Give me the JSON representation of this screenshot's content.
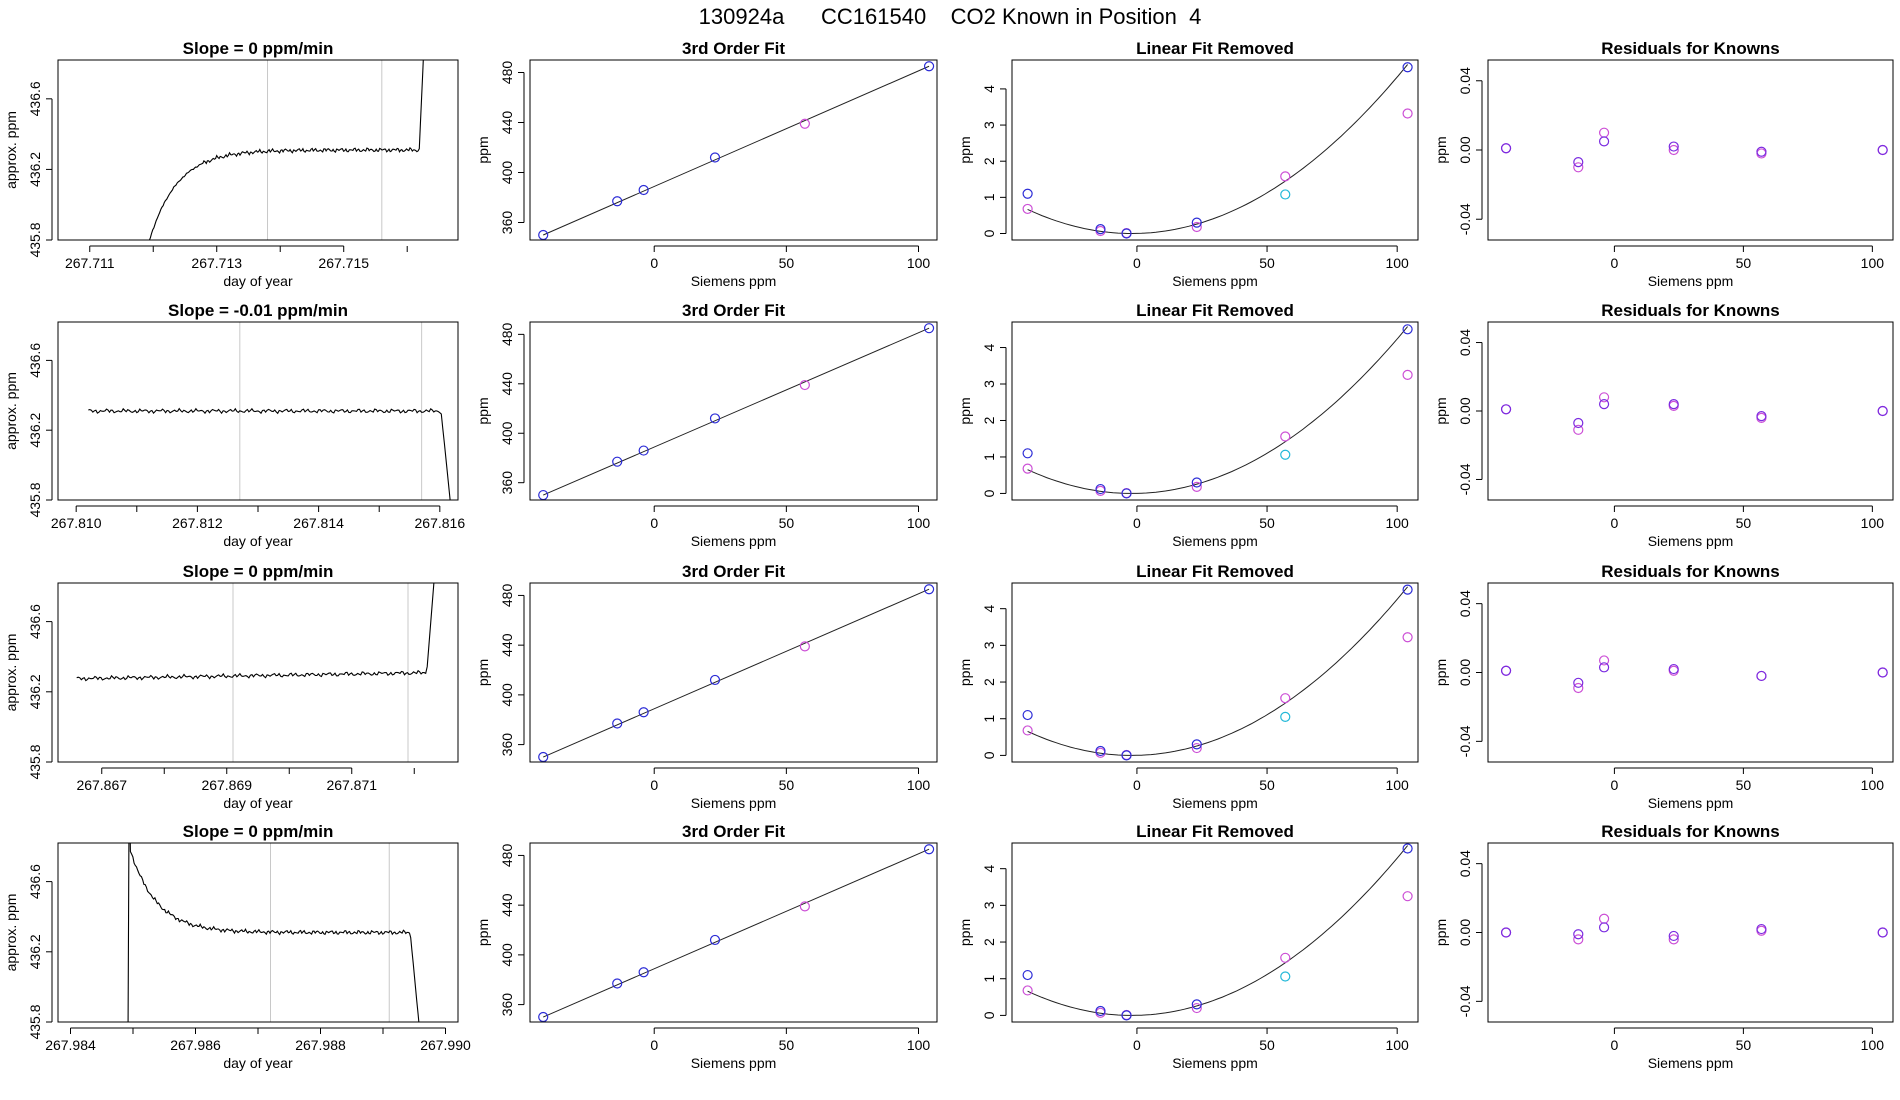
{
  "figure": {
    "title": "130924a      CC161540    CO2 Known in Position  4"
  },
  "colors": {
    "trace": "#000000",
    "vline": "#c8c8c8",
    "blue": "#2b2bd6",
    "magenta": "#cc4fd6",
    "cyan": "#22b8d8",
    "purple": "#7a2be0"
  },
  "chart_data": [
    {
      "type": "line",
      "row": 0,
      "col": 0,
      "title": "Slope =  0  ppm/min",
      "xlabel": "day of year",
      "ylabel": "approx. ppm",
      "xlim": [
        267.7105,
        267.7168
      ],
      "ylim": [
        435.8,
        436.82
      ],
      "xticks": [
        267.711,
        267.713,
        267.715
      ],
      "xtick_labels": [
        "267.711",
        "267.713",
        "267.715"
      ],
      "yticks": [
        435.8,
        436.2,
        436.6
      ],
      "ytick_labels": [
        "435.8",
        "436.2",
        "436.6"
      ],
      "vlines": [
        267.7138,
        267.7156
      ],
      "trace": {
        "x0": 267.7119,
        "x1": 267.7163,
        "shape": "rise_plateau_spike",
        "plateau": 436.31,
        "start": 435.75,
        "end_spike": 437.2
      }
    },
    {
      "type": "scatter",
      "row": 0,
      "col": 1,
      "title": "3rd Order Fit",
      "xlabel": "Siemens ppm",
      "ylabel": "ppm",
      "xlim": [
        -47,
        107
      ],
      "ylim": [
        346,
        490
      ],
      "xticks": [
        0,
        50,
        100
      ],
      "xtick_labels": [
        "0",
        "50",
        "100"
      ],
      "yticks": [
        360,
        400,
        440,
        480
      ],
      "ytick_labels": [
        "360",
        "400",
        "440",
        "480"
      ],
      "series": [
        {
          "color": "blue",
          "x": [
            -42,
            -14,
            -4,
            23,
            104
          ],
          "y": [
            350,
            377,
            386,
            412,
            485
          ]
        },
        {
          "color": "magenta",
          "x": [
            57
          ],
          "y": [
            439
          ]
        }
      ],
      "fit": {
        "kind": "line",
        "x": [
          -42,
          104
        ],
        "y": [
          350,
          485
        ]
      }
    },
    {
      "type": "scatter",
      "row": 0,
      "col": 2,
      "title": "Linear Fit Removed",
      "xlabel": "Siemens ppm",
      "ylabel": "ppm",
      "xlim": [
        -48,
        108
      ],
      "ylim": [
        -0.18,
        4.8
      ],
      "xticks": [
        0,
        50,
        100
      ],
      "xtick_labels": [
        "0",
        "50",
        "100"
      ],
      "yticks": [
        0,
        1,
        2,
        3,
        4
      ],
      "ytick_labels": [
        "0",
        "1",
        "2",
        "3",
        "4"
      ],
      "series": [
        {
          "color": "blue",
          "x": [
            -42,
            -14,
            -4,
            23,
            104
          ],
          "y": [
            1.1,
            0.12,
            0.0,
            0.3,
            4.6
          ]
        },
        {
          "color": "magenta",
          "x": [
            -42,
            -14,
            -4,
            23,
            57,
            104
          ],
          "y": [
            0.68,
            0.07,
            0.01,
            0.18,
            1.58,
            3.32
          ]
        },
        {
          "color": "cyan",
          "x": [
            57
          ],
          "y": [
            1.08
          ]
        }
      ],
      "fit": {
        "kind": "quadratic",
        "xmin": -42,
        "xmax": 104,
        "vx": -2,
        "vy": 0.0,
        "a": 0.000416
      }
    },
    {
      "type": "scatter",
      "row": 0,
      "col": 3,
      "title": "Residuals for Knowns",
      "xlabel": "Siemens ppm",
      "ylabel": "ppm",
      "xlim": [
        -49,
        108
      ],
      "ylim": [
        -0.052,
        0.052
      ],
      "xticks": [
        0,
        50,
        100
      ],
      "xtick_labels": [
        "0",
        "50",
        "100"
      ],
      "yticks": [
        -0.04,
        0.0,
        0.04
      ],
      "ytick_labels": [
        "-0.04",
        "0.00",
        "0.04"
      ],
      "series": [
        {
          "color": "purple",
          "x": [
            -42,
            -14,
            -4,
            23,
            57,
            104
          ],
          "y": [
            0.001,
            -0.007,
            0.005,
            0.002,
            -0.001,
            0.0
          ]
        },
        {
          "color": "magenta",
          "x": [
            -42,
            -14,
            -4,
            23,
            57,
            104
          ],
          "y": [
            0.001,
            -0.01,
            0.01,
            0.0,
            -0.002,
            0.0
          ]
        }
      ]
    },
    {
      "type": "line",
      "row": 1,
      "col": 0,
      "title": "Slope =  -0.01  ppm/min",
      "xlabel": "day of year",
      "ylabel": "approx. ppm",
      "xlim": [
        267.8097,
        267.8163
      ],
      "ylim": [
        435.8,
        436.82
      ],
      "xticks": [
        267.81,
        267.812,
        267.814,
        267.816
      ],
      "xtick_labels": [
        "267.810",
        "267.812",
        "267.814",
        "267.816"
      ],
      "yticks": [
        435.8,
        436.2,
        436.6
      ],
      "ytick_labels": [
        "435.8",
        "436.2",
        "436.6"
      ],
      "vlines": [
        267.8127,
        267.8157
      ],
      "trace": {
        "x0": 267.8102,
        "x1": 267.8162,
        "shape": "flat_drop",
        "plateau": 436.31,
        "end_drop": 435.7
      }
    },
    {
      "type": "scatter",
      "row": 1,
      "col": 1,
      "title": "3rd Order Fit",
      "xlabel": "Siemens ppm",
      "ylabel": "ppm",
      "xlim": [
        -47,
        107
      ],
      "ylim": [
        346,
        490
      ],
      "xticks": [
        0,
        50,
        100
      ],
      "xtick_labels": [
        "0",
        "50",
        "100"
      ],
      "yticks": [
        360,
        400,
        440,
        480
      ],
      "ytick_labels": [
        "360",
        "400",
        "440",
        "480"
      ],
      "series": [
        {
          "color": "blue",
          "x": [
            -42,
            -14,
            -4,
            23,
            104
          ],
          "y": [
            350,
            377,
            386,
            412,
            485
          ]
        },
        {
          "color": "magenta",
          "x": [
            57
          ],
          "y": [
            439
          ]
        }
      ],
      "fit": {
        "kind": "line",
        "x": [
          -42,
          104
        ],
        "y": [
          350,
          485
        ]
      }
    },
    {
      "type": "scatter",
      "row": 1,
      "col": 2,
      "title": "Linear Fit Removed",
      "xlabel": "Siemens ppm",
      "ylabel": "ppm",
      "xlim": [
        -48,
        108
      ],
      "ylim": [
        -0.18,
        4.7
      ],
      "xticks": [
        0,
        50,
        100
      ],
      "xtick_labels": [
        "0",
        "50",
        "100"
      ],
      "yticks": [
        0,
        1,
        2,
        3,
        4
      ],
      "ytick_labels": [
        "0",
        "1",
        "2",
        "3",
        "4"
      ],
      "series": [
        {
          "color": "blue",
          "x": [
            -42,
            -14,
            -4,
            23,
            104
          ],
          "y": [
            1.1,
            0.12,
            0.0,
            0.3,
            4.5
          ]
        },
        {
          "color": "magenta",
          "x": [
            -42,
            -14,
            -4,
            23,
            57,
            104
          ],
          "y": [
            0.68,
            0.07,
            0.01,
            0.18,
            1.56,
            3.25
          ]
        },
        {
          "color": "cyan",
          "x": [
            57
          ],
          "y": [
            1.06
          ]
        }
      ],
      "fit": {
        "kind": "quadratic",
        "xmin": -42,
        "xmax": 104,
        "vx": -2,
        "vy": 0.0,
        "a": 0.000407
      }
    },
    {
      "type": "scatter",
      "row": 1,
      "col": 3,
      "title": "Residuals for Knowns",
      "xlabel": "Siemens ppm",
      "ylabel": "ppm",
      "xlim": [
        -49,
        108
      ],
      "ylim": [
        -0.052,
        0.052
      ],
      "xticks": [
        0,
        50,
        100
      ],
      "xtick_labels": [
        "0",
        "50",
        "100"
      ],
      "yticks": [
        -0.04,
        0.0,
        0.04
      ],
      "ytick_labels": [
        "-0.04",
        "0.00",
        "0.04"
      ],
      "series": [
        {
          "color": "purple",
          "x": [
            -42,
            -14,
            -4,
            23,
            57,
            104
          ],
          "y": [
            0.001,
            -0.007,
            0.004,
            0.004,
            -0.003,
            0.0
          ]
        },
        {
          "color": "magenta",
          "x": [
            -42,
            -14,
            -4,
            23,
            57,
            104
          ],
          "y": [
            0.001,
            -0.011,
            0.008,
            0.003,
            -0.004,
            0.0
          ]
        }
      ]
    },
    {
      "type": "line",
      "row": 2,
      "col": 0,
      "title": "Slope =  0  ppm/min",
      "xlabel": "day of year",
      "ylabel": "approx. ppm",
      "xlim": [
        267.8663,
        267.8727
      ],
      "ylim": [
        435.8,
        436.82
      ],
      "xticks": [
        267.867,
        267.869,
        267.871
      ],
      "xtick_labels": [
        "267.867",
        "267.869",
        "267.871"
      ],
      "yticks": [
        435.8,
        436.2,
        436.6
      ],
      "ytick_labels": [
        "435.8",
        "436.2",
        "436.6"
      ],
      "vlines": [
        267.8691,
        267.8719
      ],
      "trace": {
        "x0": 267.8666,
        "x1": 267.8724,
        "shape": "flat_spike",
        "plateau": 436.3,
        "end_spike": 437.2
      }
    },
    {
      "type": "scatter",
      "row": 2,
      "col": 1,
      "title": "3rd Order Fit",
      "xlabel": "Siemens ppm",
      "ylabel": "ppm",
      "xlim": [
        -47,
        107
      ],
      "ylim": [
        346,
        490
      ],
      "xticks": [
        0,
        50,
        100
      ],
      "xtick_labels": [
        "0",
        "50",
        "100"
      ],
      "yticks": [
        360,
        400,
        440,
        480
      ],
      "ytick_labels": [
        "360",
        "400",
        "440",
        "480"
      ],
      "series": [
        {
          "color": "blue",
          "x": [
            -42,
            -14,
            -4,
            23,
            104
          ],
          "y": [
            350,
            377,
            386,
            412,
            485
          ]
        },
        {
          "color": "magenta",
          "x": [
            57
          ],
          "y": [
            439
          ]
        }
      ],
      "fit": {
        "kind": "line",
        "x": [
          -42,
          104
        ],
        "y": [
          350,
          485
        ]
      }
    },
    {
      "type": "scatter",
      "row": 2,
      "col": 2,
      "title": "Linear Fit Removed",
      "xlabel": "Siemens ppm",
      "ylabel": "ppm",
      "xlim": [
        -48,
        108
      ],
      "ylim": [
        -0.18,
        4.7
      ],
      "xticks": [
        0,
        50,
        100
      ],
      "xtick_labels": [
        "0",
        "50",
        "100"
      ],
      "yticks": [
        0,
        1,
        2,
        3,
        4
      ],
      "ytick_labels": [
        "0",
        "1",
        "2",
        "3",
        "4"
      ],
      "series": [
        {
          "color": "blue",
          "x": [
            -42,
            -14,
            -4,
            23,
            104
          ],
          "y": [
            1.1,
            0.12,
            0.0,
            0.3,
            4.52
          ]
        },
        {
          "color": "magenta",
          "x": [
            -42,
            -14,
            -4,
            23,
            57,
            104
          ],
          "y": [
            0.68,
            0.07,
            0.01,
            0.2,
            1.56,
            3.22
          ]
        },
        {
          "color": "cyan",
          "x": [
            57
          ],
          "y": [
            1.05
          ]
        }
      ],
      "fit": {
        "kind": "quadratic",
        "xmin": -42,
        "xmax": 104,
        "vx": -2,
        "vy": 0.0,
        "a": 0.000409
      }
    },
    {
      "type": "scatter",
      "row": 2,
      "col": 3,
      "title": "Residuals for Knowns",
      "xlabel": "Siemens ppm",
      "ylabel": "ppm",
      "xlim": [
        -49,
        108
      ],
      "ylim": [
        -0.052,
        0.052
      ],
      "xticks": [
        0,
        50,
        100
      ],
      "xtick_labels": [
        "0",
        "50",
        "100"
      ],
      "yticks": [
        -0.04,
        0.0,
        0.04
      ],
      "ytick_labels": [
        "-0.04",
        "0.00",
        "0.04"
      ],
      "series": [
        {
          "color": "purple",
          "x": [
            -42,
            -14,
            -4,
            23,
            57,
            104
          ],
          "y": [
            0.001,
            -0.006,
            0.003,
            0.002,
            -0.002,
            0.0
          ]
        },
        {
          "color": "magenta",
          "x": [
            -42,
            -14,
            -4,
            23,
            57,
            104
          ],
          "y": [
            0.001,
            -0.009,
            0.007,
            0.001,
            -0.002,
            0.0
          ]
        }
      ]
    },
    {
      "type": "line",
      "row": 3,
      "col": 0,
      "title": "Slope =  0  ppm/min",
      "xlabel": "day of year",
      "ylabel": "approx. ppm",
      "xlim": [
        267.9838,
        267.9902
      ],
      "ylim": [
        435.8,
        436.82
      ],
      "xticks": [
        267.984,
        267.986,
        267.988,
        267.99
      ],
      "xtick_labels": [
        "267.984",
        "267.986",
        "267.988",
        "267.990"
      ],
      "yticks": [
        435.8,
        436.2,
        436.6
      ],
      "ytick_labels": [
        "435.8",
        "436.2",
        "436.6"
      ],
      "vlines": [
        267.9872,
        267.9891
      ],
      "trace": {
        "x0": 267.9849,
        "x1": 267.9896,
        "shape": "spike_decay_drop",
        "plateau": 436.31,
        "start": 435.7,
        "peak": 437.2,
        "end_drop": 435.7
      }
    },
    {
      "type": "scatter",
      "row": 3,
      "col": 1,
      "title": "3rd Order Fit",
      "xlabel": "Siemens ppm",
      "ylabel": "ppm",
      "xlim": [
        -47,
        107
      ],
      "ylim": [
        346,
        490
      ],
      "xticks": [
        0,
        50,
        100
      ],
      "xtick_labels": [
        "0",
        "50",
        "100"
      ],
      "yticks": [
        360,
        400,
        440,
        480
      ],
      "ytick_labels": [
        "360",
        "400",
        "440",
        "480"
      ],
      "series": [
        {
          "color": "blue",
          "x": [
            -42,
            -14,
            -4,
            23,
            104
          ],
          "y": [
            350,
            377,
            386,
            412,
            485
          ]
        },
        {
          "color": "magenta",
          "x": [
            57
          ],
          "y": [
            439
          ]
        }
      ],
      "fit": {
        "kind": "line",
        "x": [
          -42,
          104
        ],
        "y": [
          350,
          485
        ]
      }
    },
    {
      "type": "scatter",
      "row": 3,
      "col": 2,
      "title": "Linear Fit Removed",
      "xlabel": "Siemens ppm",
      "ylabel": "ppm",
      "xlim": [
        -48,
        108
      ],
      "ylim": [
        -0.18,
        4.7
      ],
      "xticks": [
        0,
        50,
        100
      ],
      "xtick_labels": [
        "0",
        "50",
        "100"
      ],
      "yticks": [
        0,
        1,
        2,
        3,
        4
      ],
      "ytick_labels": [
        "0",
        "1",
        "2",
        "3",
        "4"
      ],
      "series": [
        {
          "color": "blue",
          "x": [
            -42,
            -14,
            -4,
            23,
            104
          ],
          "y": [
            1.1,
            0.12,
            0.0,
            0.3,
            4.55
          ]
        },
        {
          "color": "magenta",
          "x": [
            -42,
            -14,
            -4,
            23,
            57,
            104
          ],
          "y": [
            0.68,
            0.07,
            0.01,
            0.2,
            1.57,
            3.25
          ]
        },
        {
          "color": "cyan",
          "x": [
            57
          ],
          "y": [
            1.06
          ]
        }
      ],
      "fit": {
        "kind": "quadratic",
        "xmin": -42,
        "xmax": 104,
        "vx": -2,
        "vy": 0.0,
        "a": 0.000412
      }
    },
    {
      "type": "scatter",
      "row": 3,
      "col": 3,
      "title": "Residuals for Knowns",
      "xlabel": "Siemens ppm",
      "ylabel": "ppm",
      "xlim": [
        -49,
        108
      ],
      "ylim": [
        -0.052,
        0.052
      ],
      "xticks": [
        0,
        50,
        100
      ],
      "xtick_labels": [
        "0",
        "50",
        "100"
      ],
      "yticks": [
        -0.04,
        0.0,
        0.04
      ],
      "ytick_labels": [
        "-0.04",
        "0.00",
        "0.04"
      ],
      "series": [
        {
          "color": "purple",
          "x": [
            -42,
            -14,
            -4,
            23,
            57,
            104
          ],
          "y": [
            0.0,
            -0.001,
            0.003,
            -0.002,
            0.002,
            0.0
          ]
        },
        {
          "color": "magenta",
          "x": [
            -42,
            -14,
            -4,
            23,
            57,
            104
          ],
          "y": [
            0.0,
            -0.004,
            0.008,
            -0.004,
            0.001,
            0.0
          ]
        }
      ]
    }
  ]
}
